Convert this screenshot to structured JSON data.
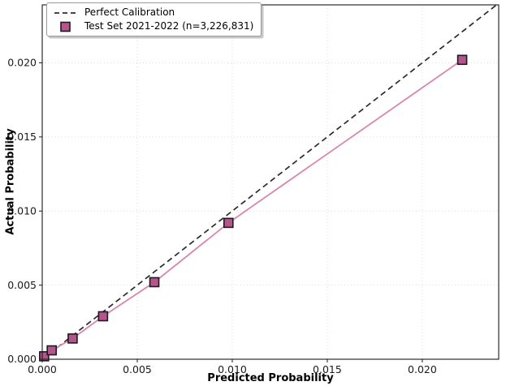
{
  "chart_data": {
    "type": "line",
    "title": "",
    "xlabel": "Predicted Probability",
    "ylabel": "Actual Probability",
    "xlim": [
      0,
      0.02402
    ],
    "ylim": [
      0,
      0.02391
    ],
    "xticks": [
      0,
      0.005,
      0.01,
      0.015,
      0.02
    ],
    "yticks": [
      0,
      0.005,
      0.01,
      0.015,
      0.02
    ],
    "tick_decimals": 3,
    "grid": "dotted",
    "legend_position": "upper-left",
    "colors": {
      "background": "#ffffff",
      "spine": "#1a1a1a",
      "tick": "#1a1a1a",
      "grid": "#dcdcdc",
      "perfect_line": "#2b2b2b",
      "test_line": "#d687ad",
      "marker_fill": "#b4568c",
      "marker_edge": "#221822"
    },
    "series": [
      {
        "name": "Perfect Calibration",
        "type": "line",
        "line_style": "dashed",
        "color": "#2b2b2b",
        "x": [
          0,
          0.02391
        ],
        "y": [
          0,
          0.02391
        ]
      },
      {
        "name": "Test Set 2021-2022 (n=3,226,831)",
        "type": "line-with-markers",
        "marker": "square",
        "line_color": "#d687ad",
        "marker_fill": "#b4568c",
        "marker_edge": "#221822",
        "x": [
          0.0001,
          0.0005,
          0.0016,
          0.0032,
          0.0059,
          0.0098,
          0.0221
        ],
        "y": [
          0.0002,
          0.0006,
          0.0014,
          0.0029,
          0.0052,
          0.0092,
          0.0202
        ]
      }
    ]
  }
}
